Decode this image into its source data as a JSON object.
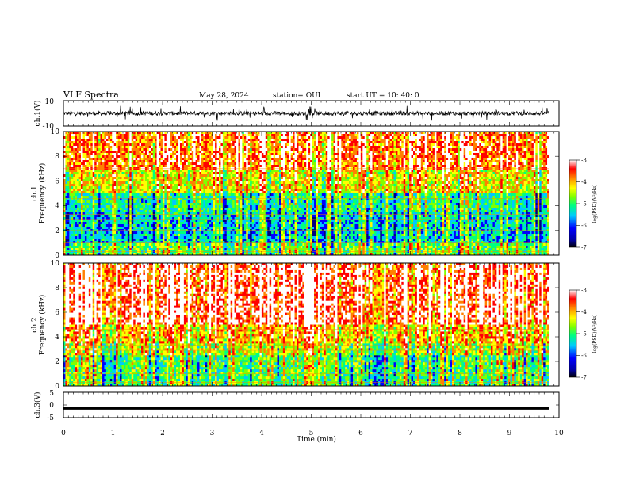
{
  "header": {
    "title": "VLF Spectra",
    "date": "May 28, 2024",
    "station": "station= OUI",
    "start": "start UT =  10: 40: 0"
  },
  "chart_data": [
    {
      "type": "line",
      "panel": "ch1-waveform",
      "ylabel": "ch.1(V)",
      "ylim": [
        -10,
        10
      ],
      "yticks": [
        10,
        -10
      ],
      "xlim": [
        0,
        10
      ],
      "description_values": "noisy waveform centered near 0 V, amplitude about ±2 V with spikes to ±5 V, data from 0 to ~9.8 min"
    },
    {
      "type": "heatmap",
      "panel": "ch1-spectrogram",
      "ylabel": "Frequency (kHz)",
      "channel_label": "ch.1",
      "ylim": [
        0,
        10
      ],
      "yticks": [
        0,
        2,
        4,
        6,
        8,
        10
      ],
      "xlim": [
        0,
        10
      ],
      "data_end_min": 9.8,
      "colorbar": {
        "label": "log(PSD)(V²/Hz)",
        "range": [
          -7,
          -3
        ],
        "ticks": [
          -3,
          -4,
          -5,
          -6,
          -7
        ]
      }
    },
    {
      "type": "heatmap",
      "panel": "ch2-spectrogram",
      "ylabel": "Frequency (kHz)",
      "channel_label": "ch.2",
      "ylim": [
        0,
        10
      ],
      "yticks": [
        0,
        2,
        4,
        6,
        8,
        10
      ],
      "xlim": [
        0,
        10
      ],
      "data_end_min": 9.8,
      "colorbar": {
        "label": "log(PSD)(V²/Hz)",
        "range": [
          -7,
          -3
        ],
        "ticks": [
          -3,
          -4,
          -5,
          -6,
          -7
        ]
      }
    },
    {
      "type": "line",
      "panel": "ch3-waveform",
      "ylabel": "ch.3(V)",
      "ylim": [
        -5,
        5
      ],
      "yticks": [
        5,
        0,
        -5
      ],
      "xlim": [
        0,
        10
      ],
      "values_constant": -1.3,
      "data_end_min": 9.8
    }
  ],
  "xaxis": {
    "label": "Time (min)",
    "ticks": [
      "0",
      "1",
      "2",
      "3",
      "4",
      "5",
      "6",
      "7",
      "8",
      "9",
      "10"
    ]
  },
  "colors": {
    "colormap": [
      "#000080",
      "#0000ff",
      "#00c8ff",
      "#00ff80",
      "#80ff00",
      "#ffff00",
      "#ff8000",
      "#ff0000",
      "#ffffff"
    ]
  }
}
